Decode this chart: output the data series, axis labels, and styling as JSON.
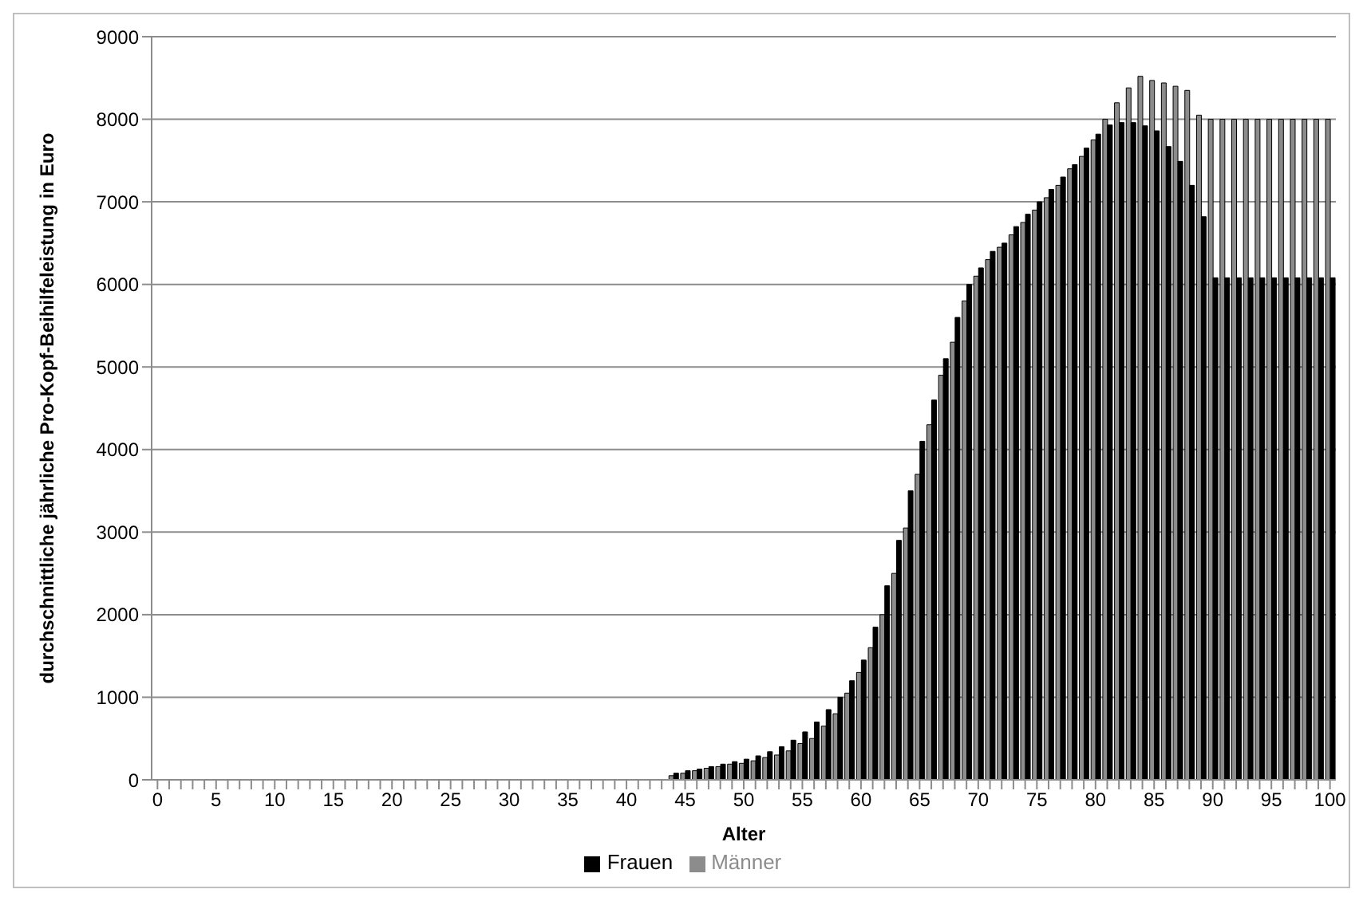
{
  "chart_data": {
    "type": "bar",
    "xlabel": "Alter",
    "ylabel": "durchschnittliche jährliche Pro-Kopf-Beihilfeleistung in Euro",
    "categories": [
      "0",
      null,
      null,
      null,
      null,
      "5",
      null,
      null,
      null,
      null,
      "10",
      null,
      null,
      null,
      null,
      "15",
      null,
      null,
      null,
      null,
      "20",
      null,
      null,
      null,
      null,
      "25",
      null,
      null,
      null,
      null,
      "30",
      null,
      null,
      null,
      null,
      "35",
      null,
      null,
      null,
      null,
      "40",
      null,
      null,
      null,
      null,
      "45",
      null,
      null,
      null,
      null,
      "50",
      null,
      null,
      null,
      null,
      "55",
      null,
      null,
      null,
      null,
      "60",
      null,
      null,
      null,
      null,
      "65",
      null,
      null,
      null,
      null,
      "70",
      null,
      null,
      null,
      null,
      "75",
      null,
      null,
      null,
      null,
      "80",
      null,
      null,
      null,
      null,
      "85",
      null,
      null,
      null,
      null,
      "90",
      null,
      null,
      null,
      null,
      "95",
      null,
      null,
      null,
      null,
      "100"
    ],
    "series": [
      {
        "name": "Männer",
        "color": "#8c8c8c",
        "values": [
          0,
          0,
          0,
          0,
          0,
          0,
          0,
          0,
          0,
          0,
          0,
          0,
          0,
          0,
          0,
          0,
          0,
          0,
          0,
          0,
          0,
          0,
          0,
          0,
          0,
          0,
          0,
          0,
          0,
          0,
          0,
          0,
          0,
          0,
          0,
          0,
          0,
          0,
          0,
          0,
          0,
          0,
          0,
          0,
          50,
          80,
          110,
          140,
          160,
          190,
          200,
          230,
          270,
          300,
          350,
          440,
          500,
          650,
          800,
          1050,
          1300,
          1600,
          2000,
          2500,
          3050,
          3700,
          4300,
          4900,
          5300,
          5800,
          6100,
          6300,
          6450,
          6600,
          6750,
          6900,
          7050,
          7200,
          7400,
          7550,
          7750,
          8000,
          8200,
          8380,
          8520,
          8470,
          8440,
          8400,
          8350,
          8050,
          8000,
          8000,
          8000,
          8000,
          8000,
          8000,
          8000,
          8000,
          8000,
          8000,
          8000
        ]
      },
      {
        "name": "Frauen",
        "color": "#000000",
        "values": [
          0,
          0,
          0,
          0,
          0,
          0,
          0,
          0,
          0,
          0,
          0,
          0,
          0,
          0,
          0,
          0,
          0,
          0,
          0,
          0,
          0,
          0,
          0,
          0,
          0,
          0,
          0,
          0,
          0,
          0,
          0,
          0,
          0,
          0,
          0,
          0,
          0,
          0,
          0,
          0,
          0,
          0,
          0,
          0,
          80,
          110,
          130,
          160,
          190,
          220,
          250,
          290,
          340,
          400,
          480,
          580,
          700,
          850,
          1000,
          1200,
          1450,
          1850,
          2350,
          2900,
          3500,
          4100,
          4600,
          5100,
          5600,
          6000,
          6200,
          6400,
          6500,
          6700,
          6850,
          7000,
          7150,
          7300,
          7450,
          7650,
          7820,
          7930,
          7960,
          7960,
          7920,
          7860,
          7670,
          7490,
          7200,
          6820,
          6080,
          6080,
          6080,
          6080,
          6080,
          6080,
          6080,
          6080,
          6080,
          6080,
          6080
        ]
      }
    ],
    "ylim": [
      0,
      9000
    ],
    "yticks": [
      0,
      1000,
      2000,
      3000,
      4000,
      5000,
      6000,
      7000,
      8000,
      9000
    ],
    "grid": "y",
    "legend": "bottom"
  }
}
